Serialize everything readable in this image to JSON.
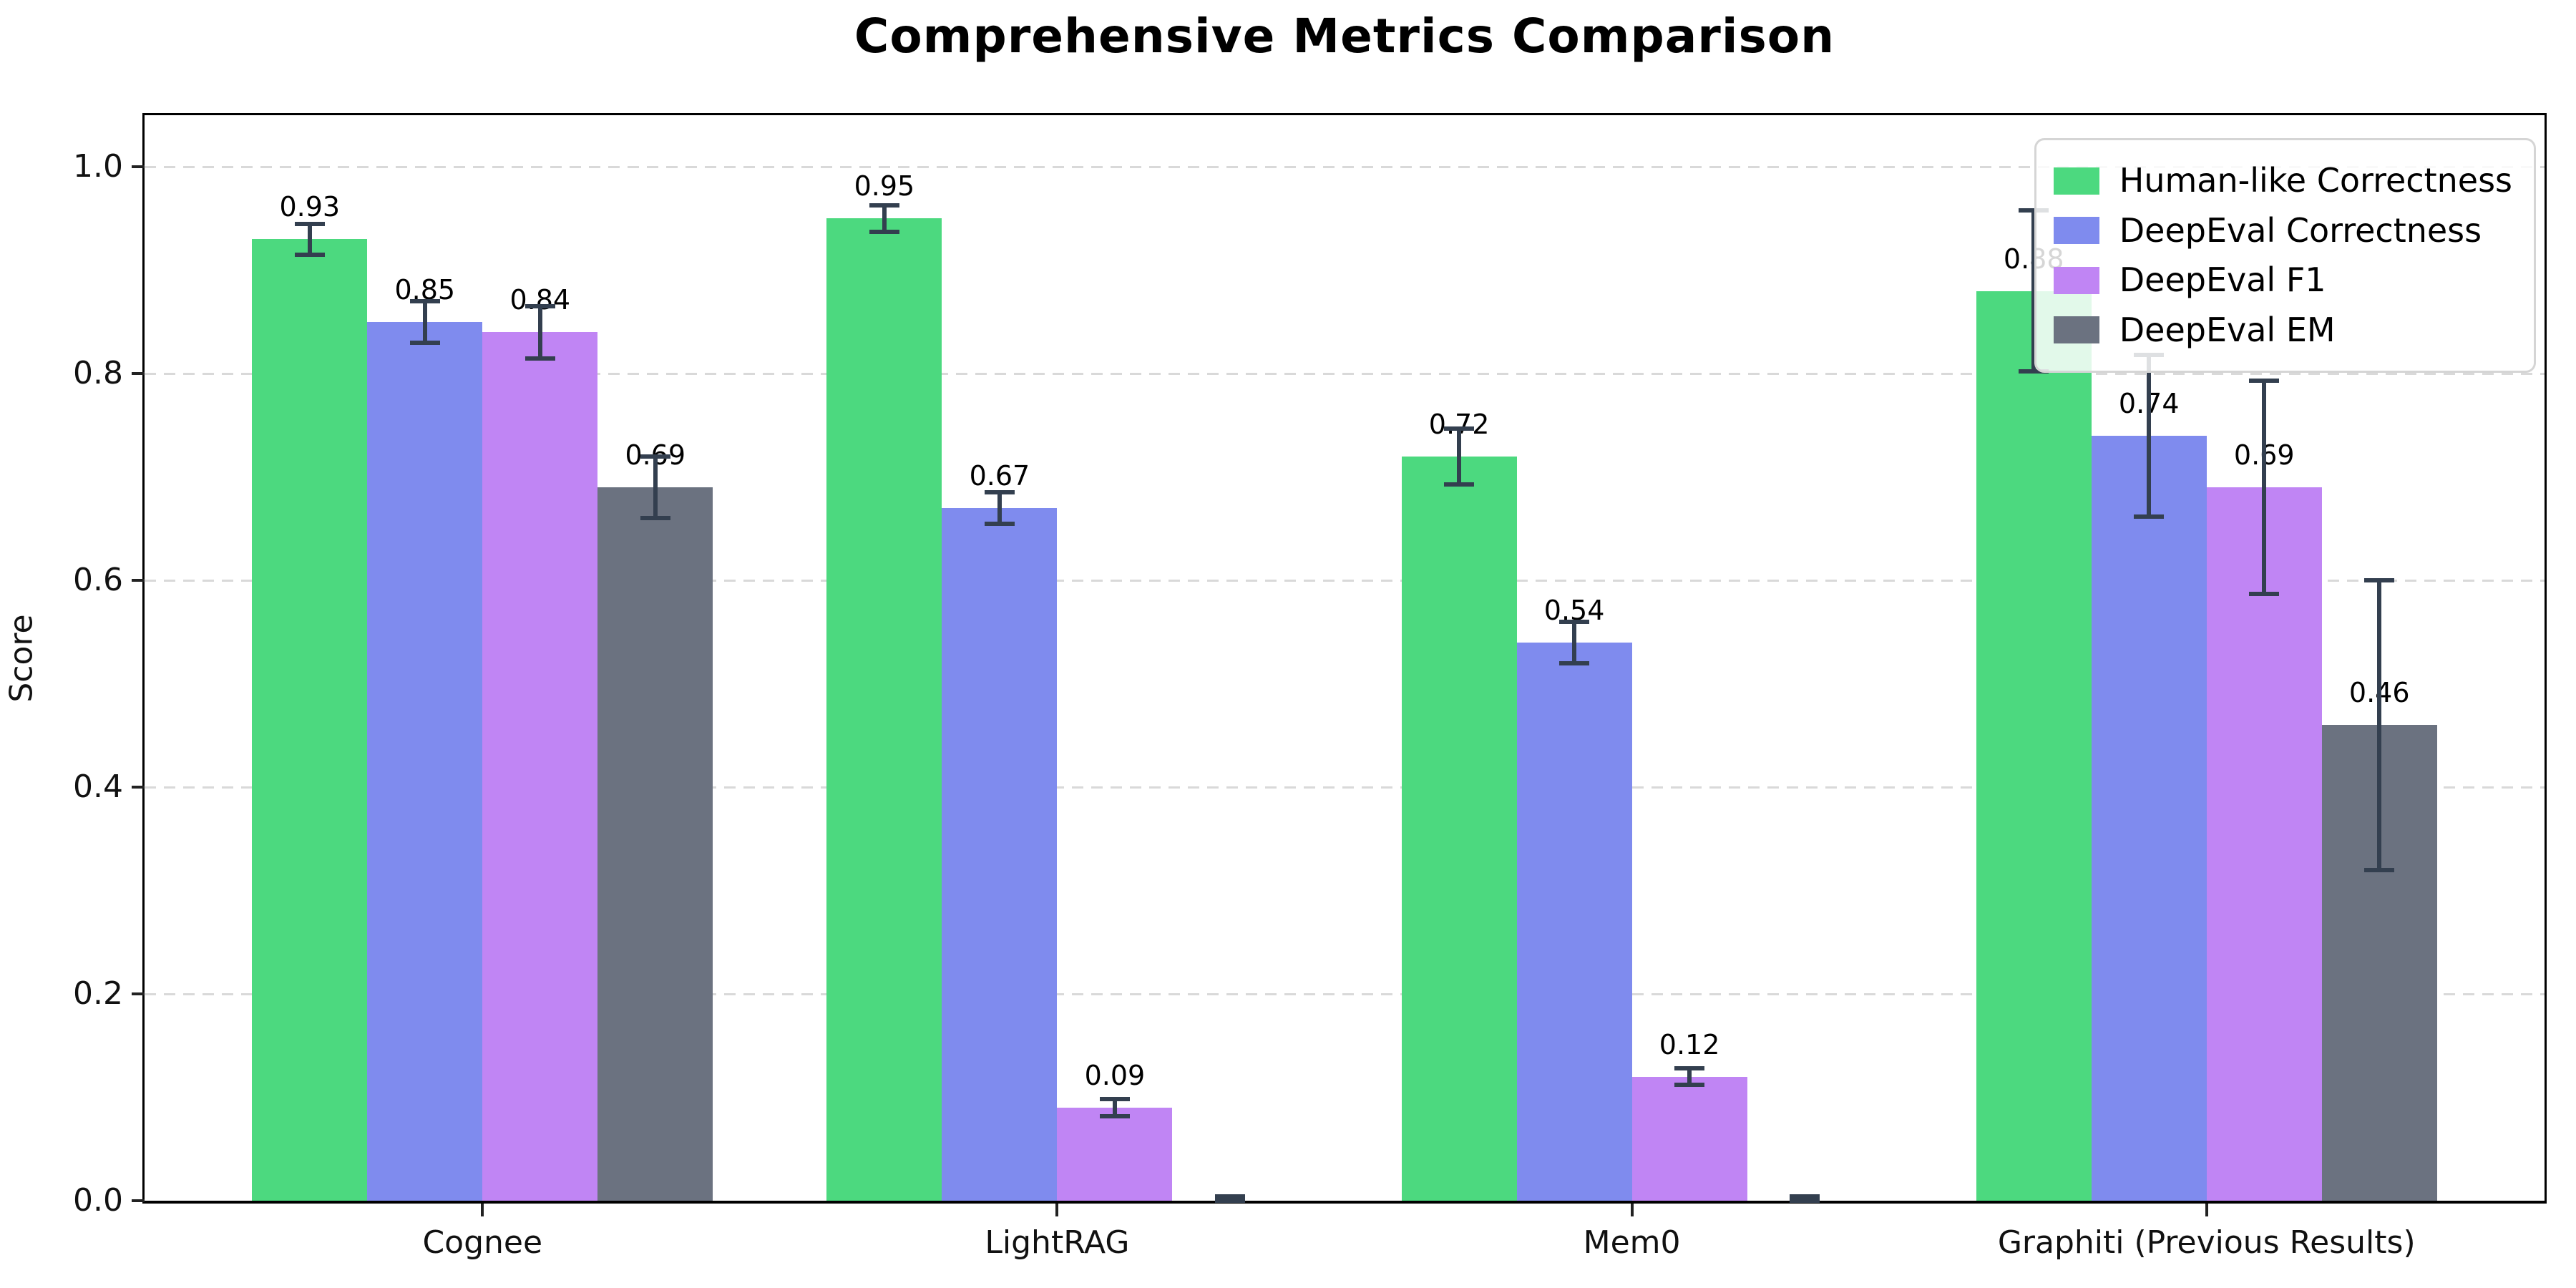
{
  "figure": {
    "title": "Comprehensive Metrics Comparison"
  },
  "chart_data": {
    "type": "bar",
    "title": "Comprehensive Metrics Comparison",
    "xlabel": "",
    "ylabel": "Score",
    "ylim": [
      0,
      1.05
    ],
    "yticks": [
      "0.0",
      "0.2",
      "0.4",
      "0.6",
      "0.8",
      "1.0"
    ],
    "grid": {
      "axis": "y",
      "style": "dashed",
      "color": "#d9d9d9"
    },
    "legend_position": "upper right",
    "error_bar_color": "#333f4f",
    "categories": [
      "Cognee",
      "LightRAG",
      "Mem0",
      "Graphiti (Previous Results)"
    ],
    "series": [
      {
        "name": "Human-like Correctness",
        "color": "#4cd97f",
        "values": [
          0.93,
          0.95,
          0.72,
          0.88
        ],
        "errors": [
          0.015,
          0.013,
          0.027,
          0.078
        ],
        "labels": [
          "0.93",
          "0.95",
          "0.72",
          "0.88"
        ]
      },
      {
        "name": "DeepEval Correctness",
        "color": "#7f8bee",
        "values": [
          0.85,
          0.67,
          0.54,
          0.74
        ],
        "errors": [
          0.02,
          0.015,
          0.02,
          0.078
        ],
        "labels": [
          "0.85",
          "0.67",
          "0.54",
          "0.74"
        ]
      },
      {
        "name": "DeepEval F1",
        "color": "#c085f4",
        "values": [
          0.84,
          0.09,
          0.12,
          0.69
        ],
        "errors": [
          0.025,
          0.008,
          0.008,
          0.103
        ],
        "labels": [
          "0.84",
          "0.09",
          "0.12",
          "0.69"
        ]
      },
      {
        "name": "DeepEval EM",
        "color": "#6b7280",
        "values": [
          0.69,
          0.0,
          0.0,
          0.46
        ],
        "errors": [
          0.03,
          0.004,
          0.004,
          0.14
        ],
        "labels": [
          "0.69",
          null,
          null,
          "0.46"
        ]
      }
    ]
  }
}
